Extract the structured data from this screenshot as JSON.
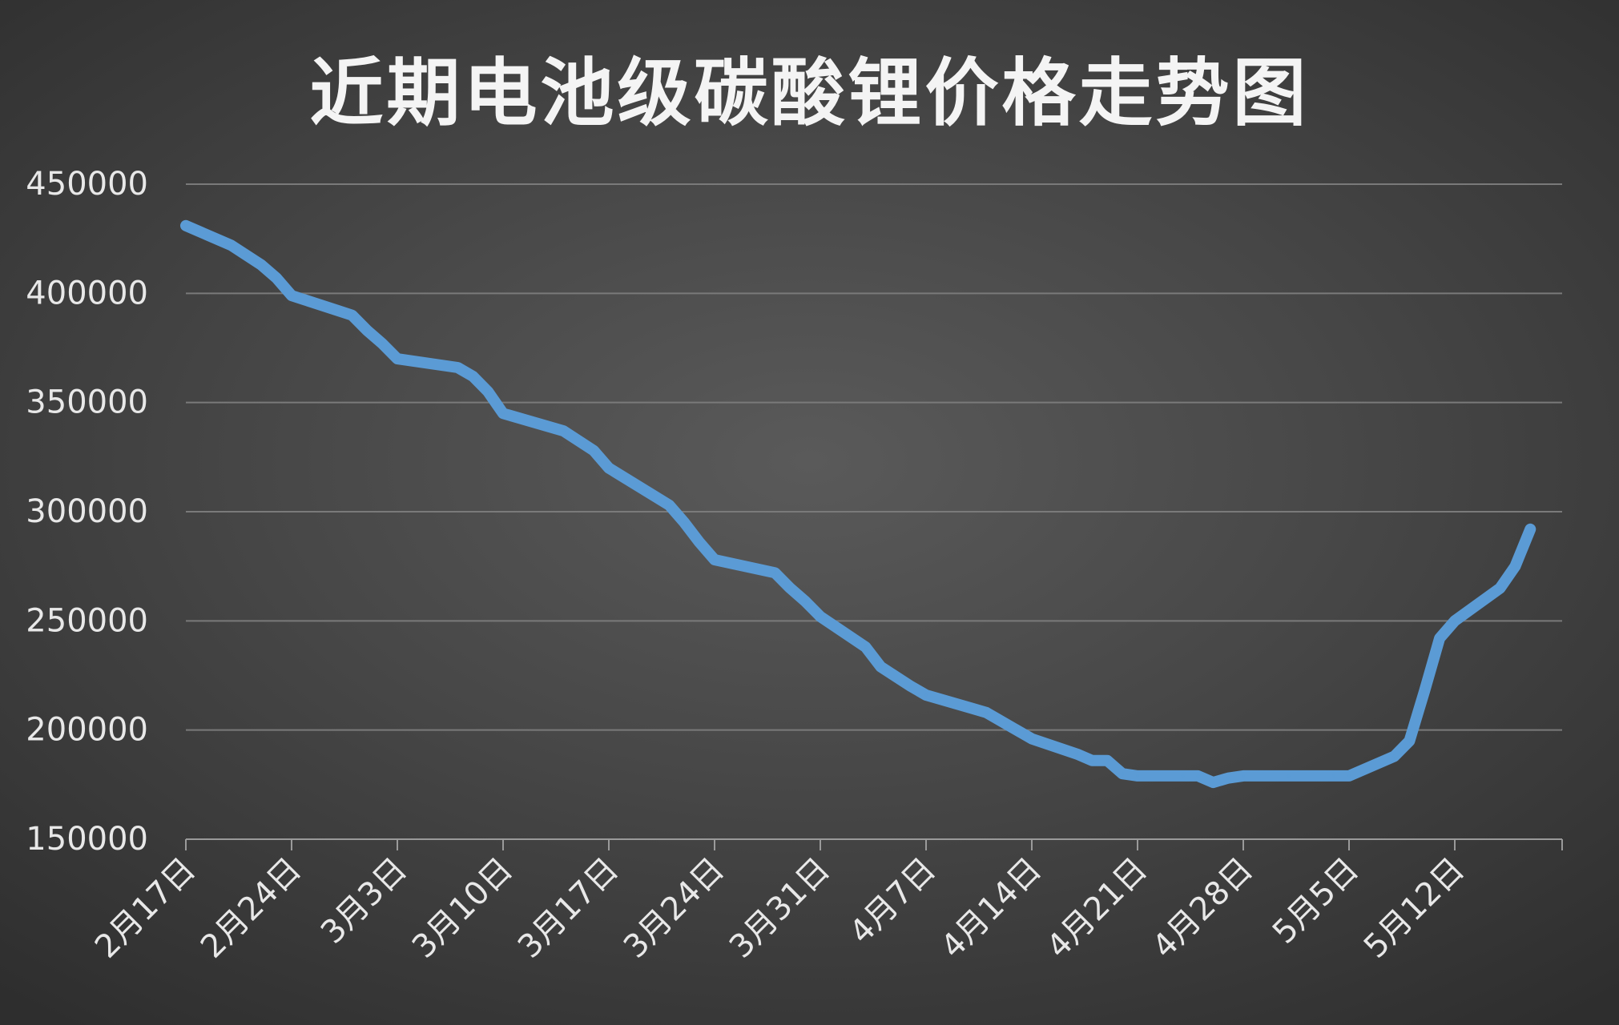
{
  "chart_data": {
    "type": "line",
    "title": "近期电池级碳酸锂价格走势图",
    "xlabel": "",
    "ylabel": "",
    "ylim": [
      150000,
      450000
    ],
    "y_ticks": [
      "450000",
      "400000",
      "350000",
      "300000",
      "250000",
      "200000",
      "150000"
    ],
    "x_tick_labels": [
      "2月17日",
      "2月24日",
      "3月3日",
      "3月10日",
      "3月17日",
      "3月24日",
      "3月31日",
      "4月7日",
      "4月14日",
      "4月21日",
      "4月28日",
      "5月5日",
      "5月12日"
    ],
    "grid": true,
    "legend": "none",
    "line_color": "#5b9bd5",
    "x": [
      "2月17日",
      "2月20日",
      "2月22日",
      "2月23日",
      "2月24日",
      "2月28日",
      "3月1日",
      "3月2日",
      "3月3日",
      "3月7日",
      "3月8日",
      "3月9日",
      "3月10日",
      "3月14日",
      "3月16日",
      "3月17日",
      "3月21日",
      "3月22日",
      "3月23日",
      "3月24日",
      "3月28日",
      "3月29日",
      "3月30日",
      "3月31日",
      "4月3日",
      "4月4日",
      "4月6日",
      "4月7日",
      "4月10日",
      "4月11日",
      "4月13日",
      "4月14日",
      "4月17日",
      "4月18日",
      "4月19日",
      "4月20日",
      "4月21日",
      "4月24日",
      "4月25日",
      "4月26日",
      "4月27日",
      "4月28日",
      "5月1日",
      "5月4日",
      "5月5日",
      "5月8日",
      "5月9日",
      "5月10日",
      "5月11日",
      "5月12日",
      "5月15日",
      "5月16日",
      "5月17日"
    ],
    "values": [
      431000,
      422000,
      413000,
      407000,
      399000,
      390000,
      383000,
      377000,
      370000,
      366000,
      362000,
      355000,
      345000,
      337000,
      328000,
      320000,
      303000,
      295000,
      286000,
      278000,
      272000,
      265000,
      259000,
      252000,
      238000,
      229000,
      220000,
      216000,
      210000,
      208000,
      200000,
      196000,
      189000,
      186000,
      186000,
      180000,
      179000,
      179000,
      179000,
      176000,
      178000,
      179000,
      179000,
      179000,
      179000,
      188000,
      195000,
      218000,
      242000,
      250000,
      265000,
      275000,
      292000
    ]
  }
}
